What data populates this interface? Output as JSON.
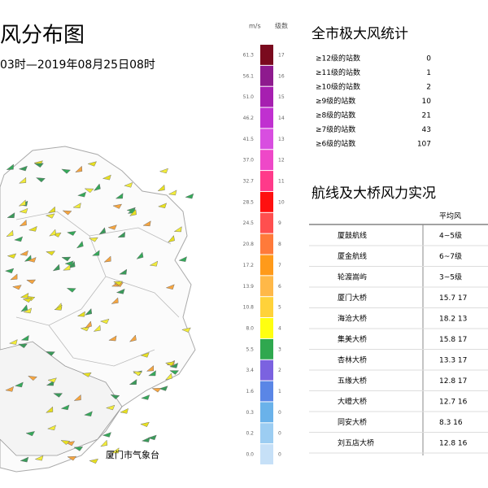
{
  "header": {
    "title": "风分布图",
    "subtitle": "03时—2019年08月25日08时"
  },
  "legend": {
    "unit_left": "m/s",
    "unit_right": "级数",
    "items": [
      {
        "color": "#7a0a1e",
        "ms": "61.3",
        "level": "17"
      },
      {
        "color": "#8e1a8e",
        "ms": "56.1",
        "level": "16"
      },
      {
        "color": "#a61fb0",
        "ms": "51.0",
        "level": "15"
      },
      {
        "color": "#c030d0",
        "ms": "46.2",
        "level": "14"
      },
      {
        "color": "#d84ee0",
        "ms": "41.5",
        "level": "13"
      },
      {
        "color": "#ee48c8",
        "ms": "37.0",
        "level": "12"
      },
      {
        "color": "#ff3a8a",
        "ms": "32.7",
        "level": "11"
      },
      {
        "color": "#ff1010",
        "ms": "28.5",
        "level": "10"
      },
      {
        "color": "#ff4f4f",
        "ms": "24.5",
        "level": "9"
      },
      {
        "color": "#ff7a3a",
        "ms": "20.8",
        "level": "8"
      },
      {
        "color": "#ff9a1a",
        "ms": "17.2",
        "level": "7"
      },
      {
        "color": "#ffb848",
        "ms": "13.9",
        "level": "6"
      },
      {
        "color": "#ffd23a",
        "ms": "10.8",
        "level": "5"
      },
      {
        "color": "#ffff10",
        "ms": "8.0",
        "level": "4"
      },
      {
        "color": "#2fa84f",
        "ms": "5.5",
        "level": "3"
      },
      {
        "color": "#7b62e0",
        "ms": "3.4",
        "level": "2"
      },
      {
        "color": "#5a86e6",
        "ms": "1.6",
        "level": "1"
      },
      {
        "color": "#6ab2ea",
        "ms": "0.3",
        "level": "0"
      },
      {
        "color": "#9ccdf2",
        "ms": "0.2",
        "level": "0"
      },
      {
        "color": "#c6e0f7",
        "ms": "0.0",
        "level": "0"
      }
    ]
  },
  "stats": {
    "title": "全市极大风统计",
    "rows": [
      [
        "≥12级的站数",
        "0"
      ],
      [
        "≥11级的站数",
        "1"
      ],
      [
        "≥10级的站数",
        "2"
      ],
      [
        "≥9级的站数",
        "10"
      ],
      [
        "≥8级的站数",
        "21"
      ],
      [
        "≥7级的站数",
        "43"
      ],
      [
        "≥6级的站数",
        "107"
      ]
    ]
  },
  "bridges": {
    "title": "航线及大桥风力实况",
    "header": "平均风",
    "rows": [
      [
        "厦鼓航线",
        "4~5级"
      ],
      [
        "厦金航线",
        "6~7级"
      ],
      [
        "轮渡嵩屿",
        "3~5级"
      ],
      [
        "厦门大桥",
        "15.7 17"
      ],
      [
        "海沧大桥",
        "18.2 13"
      ],
      [
        "集美大桥",
        "15.8 17"
      ],
      [
        "杏林大桥",
        "13.3 17"
      ],
      [
        "五缘大桥",
        "12.8 17"
      ],
      [
        "大嶝大桥",
        "12.7 16"
      ],
      [
        "同安大桥",
        "8.3 16"
      ],
      [
        "刘五店大桥",
        "12.8 16"
      ]
    ]
  },
  "map": {
    "label": "厦门市气象台"
  }
}
